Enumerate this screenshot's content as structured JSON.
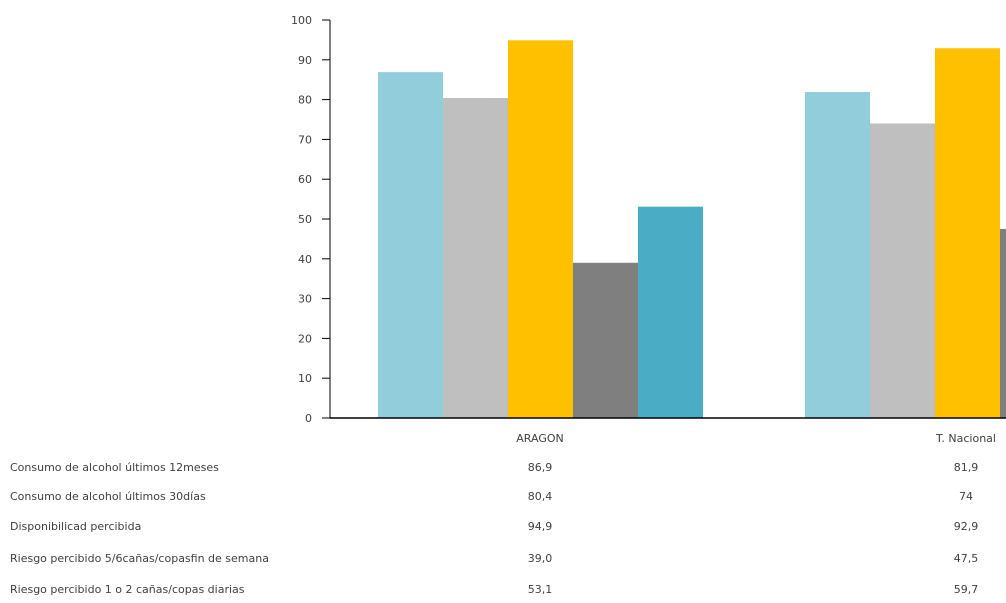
{
  "chart_data": {
    "type": "bar",
    "categories": [
      "ARAGON",
      "T. Nacional"
    ],
    "series": [
      {
        "name": "Consumo de alcohol últimos 12meses",
        "values": [
          86.9,
          81.9
        ],
        "display": [
          "86,9",
          "81,9"
        ],
        "color": "#92CDDC"
      },
      {
        "name": "Consumo de alcohol últimos 30días",
        "values": [
          80.4,
          74
        ],
        "display": [
          "80,4",
          "74"
        ],
        "color": "#BFBFBF"
      },
      {
        "name": "Disponibilicad percibida",
        "values": [
          94.9,
          92.9
        ],
        "display": [
          "94,9",
          "92,9"
        ],
        "color": "#FFC000"
      },
      {
        "name": "Riesgo percibido 5/6cañas/copasfin de semana",
        "values": [
          39.0,
          47.5
        ],
        "display": [
          "39,0",
          "47,5"
        ],
        "color": "#7F7F7F"
      },
      {
        "name": "Riesgo percibido 1 o 2 cañas/copas diarias",
        "values": [
          53.1,
          59.7
        ],
        "display": [
          "53,1",
          "59,7"
        ],
        "color": "#4BACC6"
      }
    ],
    "ylim": [
      0,
      100
    ],
    "yticks": [
      0,
      10,
      20,
      30,
      40,
      50,
      60,
      70,
      80,
      90,
      100
    ],
    "legend": "data-table-below"
  }
}
